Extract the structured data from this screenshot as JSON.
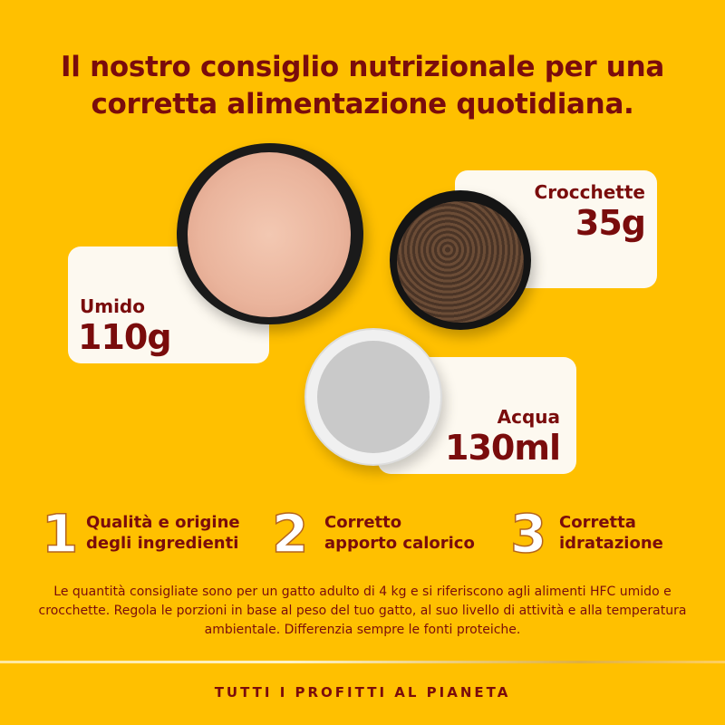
{
  "title": "Il nostro consiglio nutrizionale per una corretta alimentazione quotidiana.",
  "portions": [
    {
      "label": "Umido",
      "value": "110g"
    },
    {
      "label": "Crocchette",
      "value": "35g"
    },
    {
      "label": "Acqua",
      "value": "130ml"
    }
  ],
  "features": [
    {
      "number": "1",
      "line1": "Qualità e origine",
      "line2": "degli ingredienti"
    },
    {
      "number": "2",
      "line1": "Corretto",
      "line2": "apporto calorico"
    },
    {
      "number": "3",
      "line1": "Corretta",
      "line2": "idratazione"
    }
  ],
  "disclaimer": "Le quantità consigliate sono per un gatto adulto di 4 kg e si riferiscono agli alimenti HFC umido e crocchette. Regola le porzioni in base al peso del tuo gatto, al suo livello di attività e alla temperatura ambientale. Differenzia sempre le fonti proteiche.",
  "footer": "TUTTI I PROFITTI AL PIANETA",
  "colors": {
    "background": "#FFC000",
    "text": "#7a0c0c",
    "card": "#fdf9f0"
  }
}
